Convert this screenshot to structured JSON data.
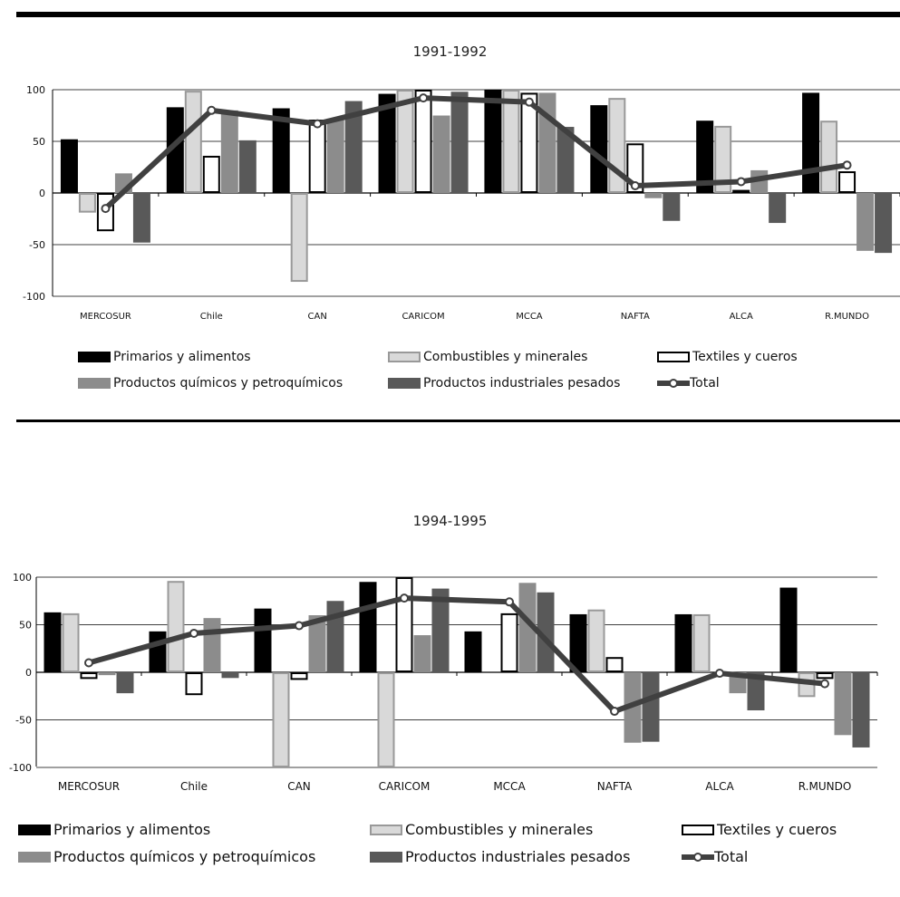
{
  "colors": {
    "primarios": "#000000",
    "combustibles": "#d9d9d9",
    "combustibles_border": "#999999",
    "textiles": "#ffffff",
    "textiles_border": "#000000",
    "quimicos": "#8c8c8c",
    "pesados": "#595959",
    "total": "#404040"
  },
  "chart_data": [
    {
      "type": "bar",
      "title": "1991-1992",
      "ylim": [
        -100,
        100
      ],
      "yticks": [
        100,
        50,
        0,
        -50,
        -100
      ],
      "categories": [
        "MERCOSUR",
        "Chile",
        "CAN",
        "CARICOM",
        "MCCA",
        "NAFTA",
        "ALCA",
        "R.MUNDO"
      ],
      "series": [
        {
          "name": "Primarios y alimentos",
          "values": [
            52,
            83,
            82,
            96,
            100,
            85,
            70,
            97
          ]
        },
        {
          "name": "Combustibles y minerales",
          "values": [
            -19,
            99,
            -86,
            100,
            100,
            92,
            65,
            70
          ]
        },
        {
          "name": "Textiles y cueros",
          "values": [
            -37,
            36,
            71,
            100,
            97,
            48,
            3,
            21
          ]
        },
        {
          "name": "Productos químicos y petroquímicos",
          "values": [
            19,
            80,
            72,
            75,
            97,
            -5,
            22,
            -56
          ]
        },
        {
          "name": "Productos industriales pesados",
          "values": [
            -48,
            51,
            89,
            98,
            64,
            -27,
            -29,
            -58
          ]
        }
      ],
      "line": {
        "name": "Total",
        "values": [
          -15,
          80,
          67,
          92,
          88,
          7,
          11,
          27
        ]
      },
      "grid": true,
      "legend_position": "bottom"
    },
    {
      "type": "bar",
      "title": "1994-1995",
      "ylim": [
        -100,
        100
      ],
      "yticks": [
        100,
        50,
        0,
        -50,
        -100
      ],
      "categories": [
        "MERCOSUR",
        "Chile",
        "CAN",
        "CARICOM",
        "MCCA",
        "NAFTA",
        "ALCA",
        "R.MUNDO"
      ],
      "series": [
        {
          "name": "Primarios y alimentos",
          "values": [
            63,
            43,
            67,
            95,
            43,
            61,
            61,
            89
          ]
        },
        {
          "name": "Combustibles y minerales",
          "values": [
            62,
            96,
            -100,
            -100,
            0,
            66,
            61,
            -26
          ]
        },
        {
          "name": "Textiles y cueros",
          "values": [
            -7,
            -24,
            -8,
            100,
            62,
            16,
            0,
            -7
          ]
        },
        {
          "name": "Productos químicos y petroquímicos",
          "values": [
            -3,
            57,
            60,
            39,
            94,
            -74,
            -22,
            -66
          ]
        },
        {
          "name": "Productos industriales pesados",
          "values": [
            -22,
            -6,
            75,
            88,
            84,
            -73,
            -40,
            -79
          ]
        }
      ],
      "line": {
        "name": "Total",
        "values": [
          10,
          41,
          49,
          78,
          74,
          -41,
          -1,
          -12
        ]
      },
      "grid": true,
      "legend_position": "bottom"
    }
  ],
  "legend_items": [
    "Primarios y alimentos",
    "Combustibles y minerales",
    "Textiles y cueros",
    "Productos químicos y petroquímicos",
    "Productos industriales pesados",
    "Total"
  ]
}
